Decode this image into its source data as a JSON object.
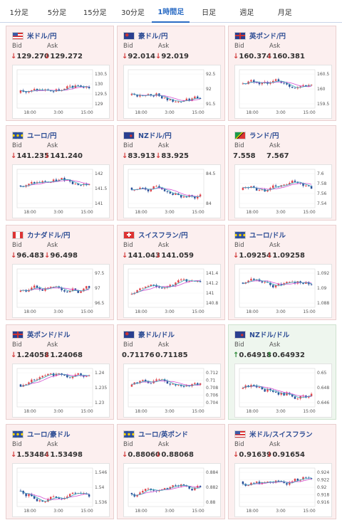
{
  "tabs": [
    "1分足",
    "5分足",
    "15分足",
    "30分足",
    "1時間足",
    "日足",
    "週足",
    "月足"
  ],
  "active_tab": "1時間足",
  "labels": {
    "bid": "Bid",
    "ask": "Ask"
  },
  "colors": {
    "up": "#e0474f",
    "down": "#2a4f99",
    "ma1": "#d24fd2",
    "ma2": "#38a6b8",
    "arrow_down": "#d23b3b",
    "arrow_up": "#2f8b3a"
  },
  "cards": [
    {
      "pair": "米ドル/円",
      "flag": "us-flag-icon",
      "direction": "down",
      "bid": "129.270",
      "ask": "129.272",
      "yticks": [
        "130.5",
        "130",
        "129.5",
        "129"
      ],
      "xticks": [
        "18:00",
        "3:00",
        "15:00"
      ]
    },
    {
      "pair": "豪ドル/円",
      "flag": "au-flag-icon",
      "direction": "down",
      "bid": "92.014",
      "ask": "92.019",
      "yticks": [
        "92.5",
        "92",
        "91.5"
      ],
      "xticks": [
        "18:00",
        "3:00",
        "15:00"
      ]
    },
    {
      "pair": "英ポンド/円",
      "flag": "uk-flag-icon",
      "direction": "down",
      "bid": "160.374",
      "ask": "160.381",
      "yticks": [
        "160.5",
        "160",
        "159.5"
      ],
      "xticks": [
        "18:00",
        "3:00",
        "15:00"
      ]
    },
    {
      "pair": "ユーロ/円",
      "flag": "eu-flag-icon",
      "direction": "down",
      "bid": "141.235",
      "ask": "141.240",
      "yticks": [
        "142",
        "141.5",
        "141"
      ],
      "xticks": [
        "18:00",
        "3:00",
        "15:00"
      ]
    },
    {
      "pair": "NZドル/円",
      "flag": "nz-flag-icon",
      "direction": "down",
      "bid": "83.913",
      "ask": "83.925",
      "yticks": [
        "84.5",
        "84"
      ],
      "xticks": [
        "18:00",
        "3:00",
        "15:00"
      ]
    },
    {
      "pair": "ランド/円",
      "flag": "za-flag-icon",
      "direction": "none",
      "bid": "7.558",
      "ask": "7.567",
      "yticks": [
        "7.6",
        "7.58",
        "7.56",
        "7.54"
      ],
      "xticks": [
        "18:00",
        "3:00",
        "15:00"
      ]
    },
    {
      "pair": "カナダドル/円",
      "flag": "ca-flag-icon",
      "direction": "down",
      "bid": "96.483",
      "ask": "96.498",
      "yticks": [
        "97.5",
        "97",
        "96.5"
      ],
      "xticks": [
        "18:00",
        "3:00",
        "15:00"
      ]
    },
    {
      "pair": "スイスフラン/円",
      "flag": "ch-flag-icon",
      "direction": "down",
      "bid": "141.043",
      "ask": "141.059",
      "yticks": [
        "141.4",
        "141.2",
        "141",
        "140.8"
      ],
      "xticks": [
        "18:00",
        "3:00",
        "15:00"
      ]
    },
    {
      "pair": "ユーロ/ドル",
      "flag": "eu-us-flag-icon",
      "direction": "down",
      "bid": "1.09254",
      "ask": "1.09258",
      "yticks": [
        "1.092",
        "1.09",
        "1.088"
      ],
      "xticks": [
        "18:00",
        "3:00",
        "15:00"
      ]
    },
    {
      "pair": "英ポンド/ドル",
      "flag": "uk-us-flag-icon",
      "direction": "down",
      "bid": "1.24058",
      "ask": "1.24068",
      "yticks": [
        "1.24",
        "1.235",
        "1.23"
      ],
      "xticks": [
        "18:00",
        "3:00",
        "15:00"
      ]
    },
    {
      "pair": "豪ドル/ドル",
      "flag": "au-us-flag-icon",
      "direction": "none",
      "bid": "0.71176",
      "ask": "0.71185",
      "yticks": [
        "0.712",
        "0.71",
        "0.708",
        "0.706",
        "0.704"
      ],
      "xticks": [
        "18:00",
        "3:00",
        "15:00"
      ]
    },
    {
      "pair": "NZドル/ドル",
      "flag": "nz-us-flag-icon",
      "direction": "up",
      "bid": "0.64918",
      "ask": "0.64932",
      "yticks": [
        "0.65",
        "0.648",
        "0.646"
      ],
      "xticks": [
        "18:00",
        "3:00",
        "15:00"
      ]
    },
    {
      "pair": "ユーロ/豪ドル",
      "flag": "eu-au-flag-icon",
      "direction": "down",
      "bid": "1.53484",
      "ask": "1.53498",
      "yticks": [
        "1.546",
        "1.54",
        "1.536"
      ],
      "xticks": [
        "18:00",
        "3:00",
        "15:00"
      ]
    },
    {
      "pair": "ユーロ/英ポンド",
      "flag": "eu-uk-flag-icon",
      "direction": "down",
      "bid": "0.88060",
      "ask": "0.88068",
      "yticks": [
        "0.884",
        "0.882",
        "0.88"
      ],
      "xticks": [
        "18:00",
        "3:00",
        "15:00"
      ]
    },
    {
      "pair": "米ドル/スイスフラン",
      "flag": "us-ch-flag-icon",
      "direction": "down",
      "bid": "0.91639",
      "ask": "0.91654",
      "yticks": [
        "0.924",
        "0.922",
        "0.92",
        "0.918",
        "0.916"
      ],
      "xticks": [
        "18:00",
        "3:00",
        "15:00"
      ]
    }
  ]
}
